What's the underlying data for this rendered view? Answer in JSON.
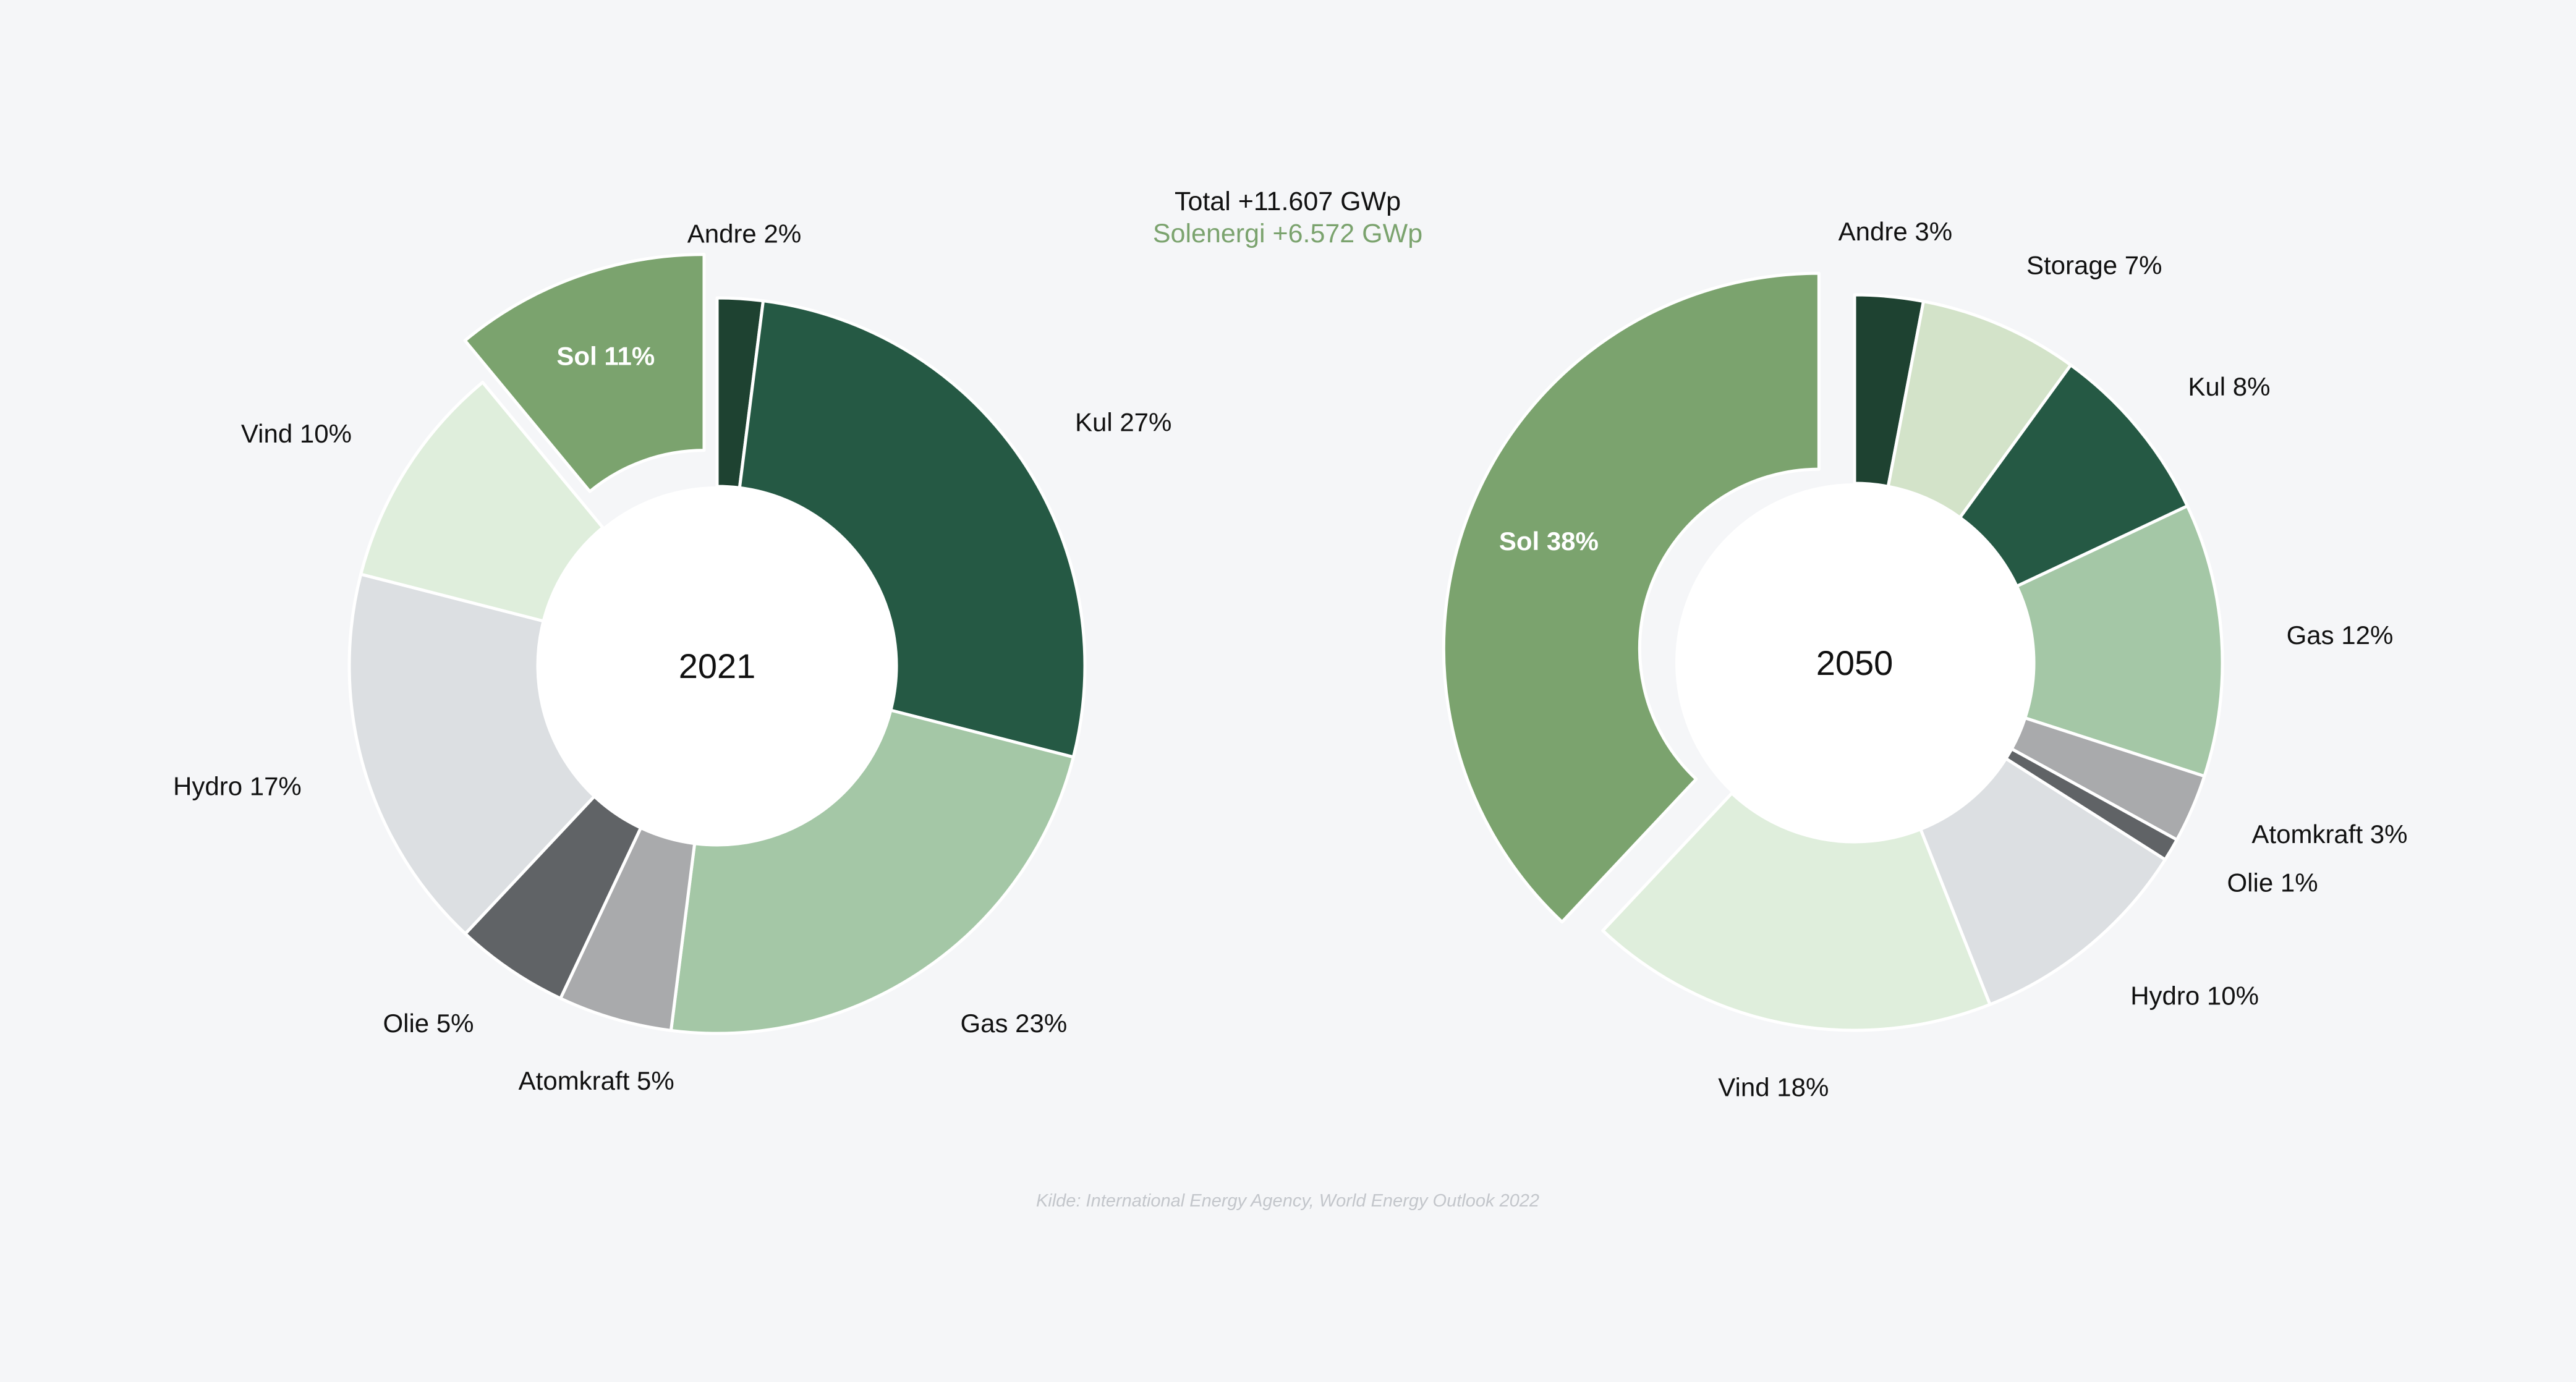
{
  "header": {
    "total": "Total +11.607 GWp",
    "solar": "Solenergi +6.572 GWp",
    "solar_color": "#7ba36e"
  },
  "source": "Kilde: International Energy Agency, World Energy Outlook 2022",
  "chart_data": [
    {
      "type": "pie",
      "center_label": "2021",
      "start_category": "Andre",
      "exploded_category": "Sol",
      "slices": [
        {
          "name": "Andre",
          "value": 2,
          "label": "Andre 2%",
          "color": "#1e4231",
          "label_side": "outside"
        },
        {
          "name": "Kul",
          "value": 27,
          "label": "Kul 27%",
          "color": "#255944",
          "label_side": "outside"
        },
        {
          "name": "Gas",
          "value": 23,
          "label": "Gas 23%",
          "color": "#a4c7a6",
          "label_side": "outside"
        },
        {
          "name": "Atomkraft",
          "value": 5,
          "label": "Atomkraft 5%",
          "color": "#a9aaac",
          "label_side": "outside"
        },
        {
          "name": "Olie",
          "value": 5,
          "label": "Olie 5%",
          "color": "#606366",
          "label_side": "outside"
        },
        {
          "name": "Hydro",
          "value": 17,
          "label": "Hydro 17%",
          "color": "#dcdfe2",
          "label_side": "outside"
        },
        {
          "name": "Vind",
          "value": 10,
          "label": "Vind 10%",
          "color": "#dfeedc",
          "label_side": "outside"
        },
        {
          "name": "Sol",
          "value": 11,
          "label": "Sol 11%",
          "color": "#7ba36e",
          "label_side": "inside"
        }
      ]
    },
    {
      "type": "pie",
      "center_label": "2050",
      "start_category": "Andre",
      "exploded_category": "Sol",
      "slices": [
        {
          "name": "Andre",
          "value": 3,
          "label": "Andre 3%",
          "color": "#1e4231",
          "label_side": "outside"
        },
        {
          "name": "Storage",
          "value": 7,
          "label": "Storage 7%",
          "color": "#d3e3c9",
          "label_side": "outside"
        },
        {
          "name": "Kul",
          "value": 8,
          "label": "Kul 8%",
          "color": "#255944",
          "label_side": "outside"
        },
        {
          "name": "Gas",
          "value": 12,
          "label": "Gas 12%",
          "color": "#a4c7a6",
          "label_side": "outside"
        },
        {
          "name": "Atomkraft",
          "value": 3,
          "label": "Atomkraft 3%",
          "color": "#a9aaac",
          "label_side": "outside"
        },
        {
          "name": "Olie",
          "value": 1,
          "label": "Olie 1%",
          "color": "#606366",
          "label_side": "outside"
        },
        {
          "name": "Hydro",
          "value": 10,
          "label": "Hydro 10%",
          "color": "#dcdfe2",
          "label_side": "outside"
        },
        {
          "name": "Vind",
          "value": 18,
          "label": "Vind 18%",
          "color": "#dfeedc",
          "label_side": "outside"
        },
        {
          "name": "Sol",
          "value": 38,
          "label": "Sol 38%",
          "color": "#7ba36e",
          "label_side": "inside"
        }
      ]
    }
  ]
}
